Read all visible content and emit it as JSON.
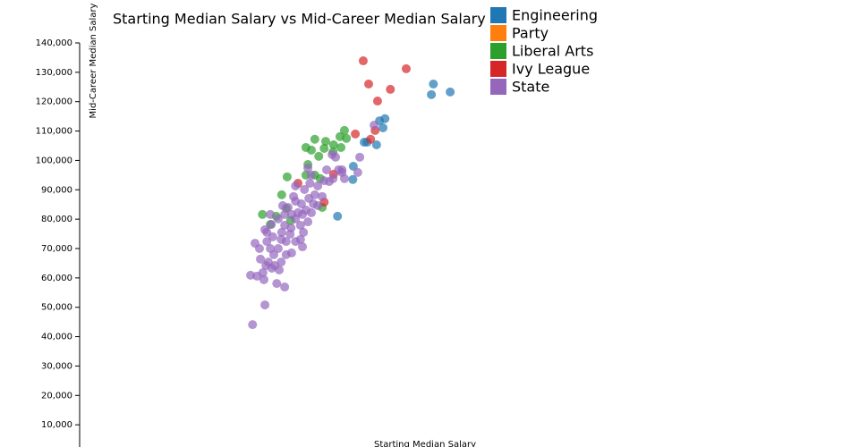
{
  "chart_data": {
    "type": "scatter",
    "title": "Starting Median Salary vs Mid-Career Median Salary",
    "x_label": "Starting Median Salary",
    "y_label": "Mid-Career Median Salary",
    "xlim": [
      0,
      140000
    ],
    "ylim": [
      0,
      140000
    ],
    "yticks": [
      {
        "value": 10000,
        "label": "10,000"
      },
      {
        "value": 20000,
        "label": "20,000"
      },
      {
        "value": 30000,
        "label": "30,000"
      },
      {
        "value": 40000,
        "label": "40,000"
      },
      {
        "value": 50000,
        "label": "50,000"
      },
      {
        "value": 60000,
        "label": "60,000"
      },
      {
        "value": 70000,
        "label": "70,000"
      },
      {
        "value": 80000,
        "label": "80,000"
      },
      {
        "value": 90000,
        "label": "90,000"
      },
      {
        "value": 100000,
        "label": "100,000"
      },
      {
        "value": 110000,
        "label": "110,000"
      },
      {
        "value": 120000,
        "label": "120,000"
      },
      {
        "value": 130000,
        "label": "130,000"
      },
      {
        "value": 140000,
        "label": "140,000"
      }
    ],
    "legend": "top-right",
    "series": [
      {
        "name": "Engineering",
        "color": "#1f77b4",
        "x": [
          71600,
          75000,
          71200,
          61800,
          60700,
          61400,
          58200,
          57600,
          60100,
          55400,
          55300,
          52200
        ],
        "values": [
          126000,
          123300,
          122400,
          114200,
          113500,
          111100,
          106200,
          106200,
          105300,
          98000,
          93500,
          81000
        ]
      },
      {
        "name": "Party",
        "color": "#ff7f0e",
        "x": [],
        "values": []
      },
      {
        "name": "Liberal Arts",
        "color": "#2ca02c",
        "x": [
          53600,
          52700,
          54000,
          47600,
          49800,
          51400,
          45800,
          49500,
          52900,
          46900,
          48400,
          51300,
          42000,
          45800,
          47600,
          48700,
          40900,
          37000,
          41800,
          39800,
          38600,
          42700,
          49100,
          46200
        ],
        "values": [
          110200,
          108100,
          107500,
          107200,
          106500,
          105300,
          104400,
          104100,
          104400,
          103500,
          101400,
          102900,
          94400,
          95000,
          95000,
          93800,
          88300,
          81600,
          83700,
          81000,
          78200,
          79500,
          84000,
          98600
        ]
      },
      {
        "name": "Ivy League",
        "color": "#d62728",
        "x": [
          57400,
          66100,
          58500,
          62900,
          60300,
          55800,
          59800,
          58900,
          49500,
          44200,
          51400
        ],
        "values": [
          133900,
          131200,
          126000,
          124200,
          120200,
          109000,
          110200,
          107200,
          85800,
          92200,
          95300
        ]
      },
      {
        "name": "State",
        "color": "#9467bd",
        "x": [
          35000,
          34600,
          35900,
          37500,
          37300,
          36600,
          37700,
          38200,
          38900,
          40400,
          39900,
          41500,
          40800,
          38600,
          36400,
          37900,
          39300,
          40200,
          41800,
          42900,
          39100,
          37500,
          38800,
          40900,
          41500,
          42600,
          43700,
          44700,
          45300,
          40200,
          41500,
          42200,
          43700,
          44900,
          46400,
          47600,
          43700,
          45100,
          46200,
          46900,
          48200,
          45500,
          46600,
          48200,
          49500,
          50500,
          51300,
          50000,
          52400,
          53100,
          51800,
          51100,
          56300,
          56700,
          59600,
          53600,
          53100,
          46900,
          46200,
          49100,
          42800,
          41100,
          43300,
          45800,
          44700,
          43700,
          38600,
          37900,
          35500,
          37100,
          39500,
          44200,
          47300,
          42900,
          40800,
          41800,
          45100
        ],
        "values": [
          44100,
          60900,
          60600,
          50800,
          59400,
          66400,
          64200,
          65400,
          63300,
          62700,
          58100,
          56900,
          65400,
          70000,
          70000,
          72400,
          67900,
          70000,
          72400,
          68500,
          74000,
          76400,
          78200,
          75500,
          77900,
          74900,
          72400,
          73100,
          75500,
          80100,
          81600,
          84000,
          86100,
          85200,
          87100,
          88300,
          80100,
          81600,
          79100,
          82200,
          84600,
          90100,
          92200,
          91300,
          93100,
          92800,
          93800,
          96800,
          96800,
          95900,
          101100,
          102000,
          95900,
          101100,
          112000,
          93800,
          96800,
          95000,
          97400,
          87700,
          77000,
          84600,
          87700,
          83100,
          77900,
          91300,
          81600,
          75500,
          71800,
          61800,
          64200,
          82200,
          85200,
          81600,
          73100,
          67900,
          70600
        ]
      }
    ]
  }
}
